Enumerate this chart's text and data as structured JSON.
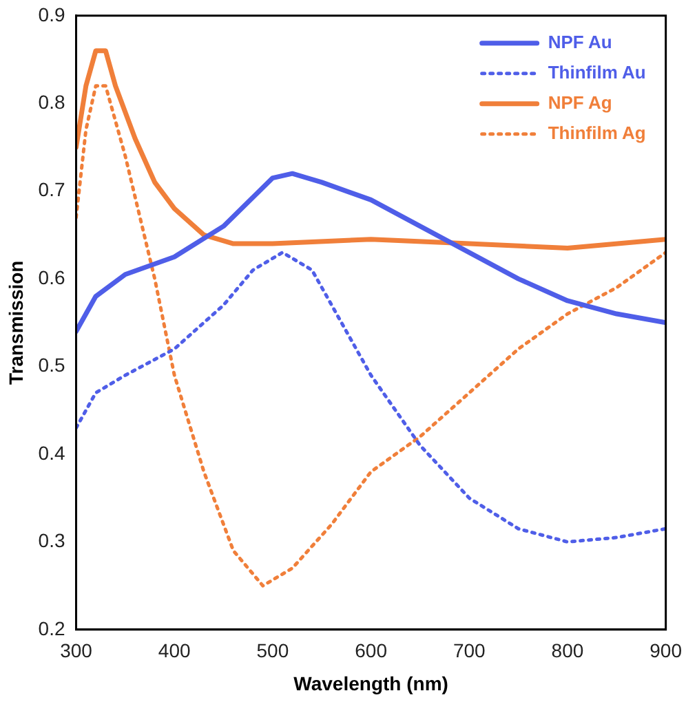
{
  "chart_data": {
    "type": "line",
    "xlabel": "Wavelength (nm)",
    "ylabel": "Transmission",
    "xlim": [
      300,
      900
    ],
    "xticks": [
      300,
      400,
      500,
      600,
      700,
      800,
      900
    ],
    "ylim": [
      0.2,
      0.9
    ],
    "yticks": [
      0.2,
      0.3,
      0.4,
      0.5,
      0.6,
      0.7,
      0.8,
      0.9
    ],
    "grid": false,
    "legend": "top right",
    "marker": "none",
    "series": [
      {
        "name": "NPF Au",
        "color": "#4f5ee8",
        "line_style": "solid",
        "x": [
          300,
          320,
          350,
          400,
          450,
          500,
          520,
          550,
          600,
          650,
          700,
          750,
          800,
          850,
          900
        ],
        "values": [
          0.54,
          0.58,
          0.605,
          0.625,
          0.66,
          0.715,
          0.72,
          0.71,
          0.69,
          0.66,
          0.63,
          0.6,
          0.575,
          0.56,
          0.55
        ]
      },
      {
        "name": "Thinfilm Au",
        "color": "#4f5ee8",
        "line_style": "dotted",
        "x": [
          300,
          320,
          350,
          400,
          450,
          480,
          510,
          540,
          570,
          600,
          650,
          700,
          750,
          800,
          850,
          900
        ],
        "values": [
          0.43,
          0.47,
          0.49,
          0.52,
          0.57,
          0.61,
          0.63,
          0.61,
          0.55,
          0.49,
          0.41,
          0.35,
          0.315,
          0.3,
          0.305,
          0.315
        ]
      },
      {
        "name": "NPF Ag",
        "color": "#f07f3a",
        "line_style": "solid",
        "x": [
          300,
          310,
          320,
          330,
          340,
          360,
          380,
          400,
          430,
          460,
          500,
          600,
          700,
          800,
          900
        ],
        "values": [
          0.75,
          0.82,
          0.86,
          0.86,
          0.82,
          0.76,
          0.71,
          0.68,
          0.65,
          0.64,
          0.64,
          0.645,
          0.64,
          0.635,
          0.645
        ]
      },
      {
        "name": "Thinfilm Ag",
        "color": "#f07f3a",
        "line_style": "dotted",
        "x": [
          300,
          310,
          320,
          330,
          350,
          380,
          400,
          430,
          460,
          490,
          520,
          560,
          600,
          650,
          700,
          750,
          800,
          850,
          900
        ],
        "values": [
          0.67,
          0.77,
          0.82,
          0.82,
          0.74,
          0.6,
          0.49,
          0.38,
          0.29,
          0.25,
          0.27,
          0.32,
          0.38,
          0.42,
          0.47,
          0.52,
          0.56,
          0.59,
          0.63
        ]
      }
    ]
  }
}
